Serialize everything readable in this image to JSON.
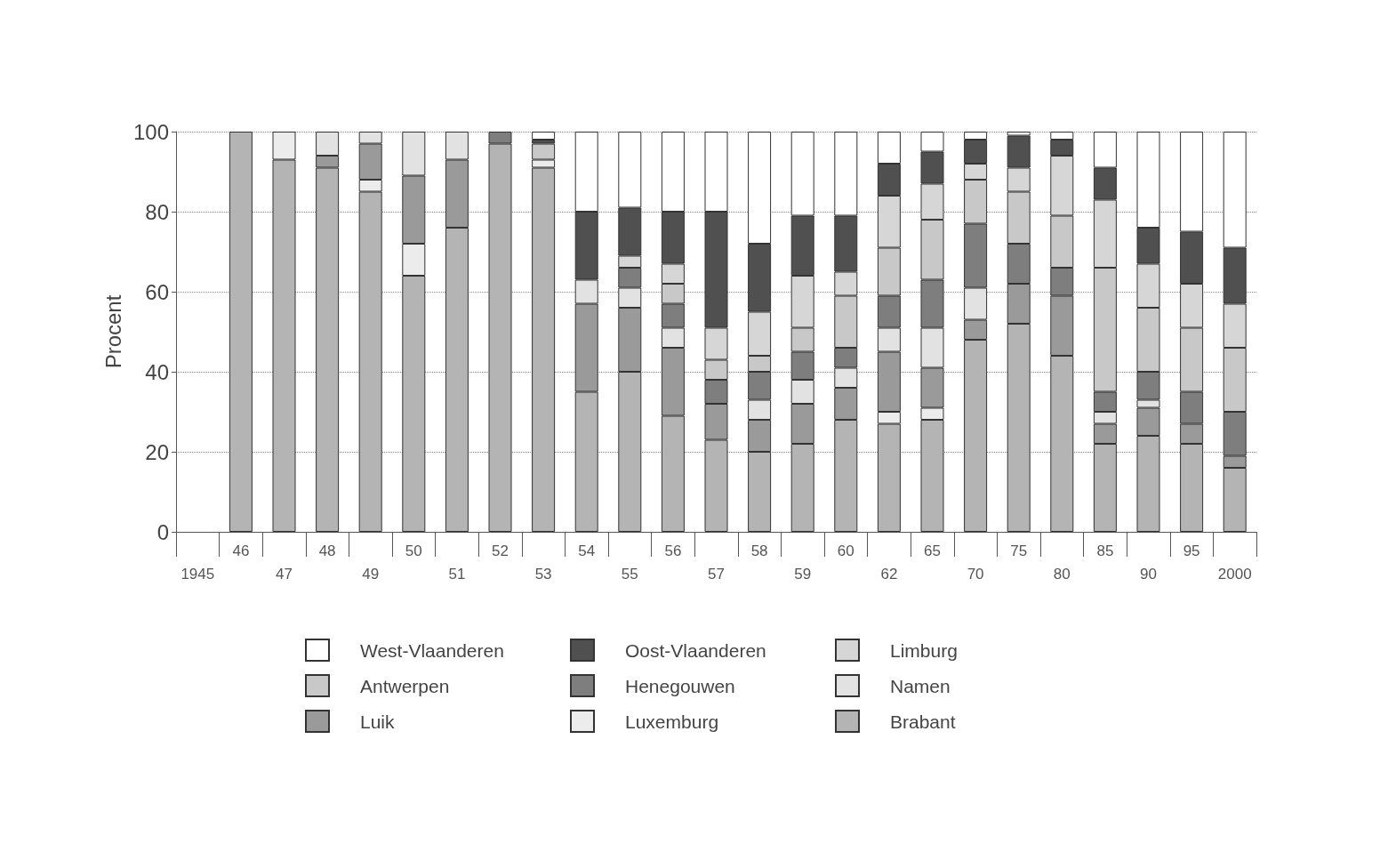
{
  "chart_data": {
    "type": "bar",
    "stacked": true,
    "ylabel": "Procent",
    "ylim": [
      0,
      100
    ],
    "yticks": [
      0,
      20,
      40,
      60,
      80,
      100
    ],
    "grid": "y",
    "legend": "bottom",
    "categories": [
      "1945",
      "46",
      "47",
      "48",
      "49",
      "50",
      "51",
      "52",
      "53",
      "54",
      "55",
      "56",
      "57",
      "58",
      "59",
      "60",
      "62",
      "65",
      "70",
      "75",
      "80",
      "85",
      "90",
      "95",
      "2000"
    ],
    "series": [
      {
        "name": "Brabant",
        "color": "#b4b4b4",
        "values": [
          null,
          100,
          93,
          91,
          85,
          64,
          76,
          97,
          91,
          35,
          40,
          29,
          23,
          20,
          22,
          28,
          27,
          28,
          48,
          52,
          44,
          22,
          24,
          22,
          16
        ]
      },
      {
        "name": "Luxemburg",
        "color": "#ececec",
        "values": [
          null,
          null,
          7,
          null,
          3,
          8,
          null,
          null,
          2,
          null,
          null,
          null,
          null,
          null,
          null,
          null,
          3,
          3,
          null,
          null,
          null,
          null,
          null,
          null,
          null
        ]
      },
      {
        "name": "Luik",
        "color": "#9a9a9a",
        "values": [
          null,
          null,
          null,
          3,
          9,
          17,
          17,
          null,
          null,
          22,
          16,
          17,
          9,
          8,
          10,
          8,
          15,
          10,
          5,
          10,
          15,
          5,
          7,
          5,
          3
        ]
      },
      {
        "name": "Namen",
        "color": "#e2e2e2",
        "values": [
          null,
          null,
          null,
          6,
          3,
          11,
          7,
          null,
          null,
          6,
          5,
          5,
          null,
          5,
          6,
          5,
          6,
          10,
          8,
          null,
          null,
          3,
          2,
          null,
          null
        ]
      },
      {
        "name": "Henegouwen",
        "color": "#7e7e7e",
        "values": [
          null,
          null,
          null,
          null,
          null,
          null,
          null,
          3,
          null,
          null,
          5,
          6,
          6,
          7,
          7,
          5,
          8,
          12,
          16,
          10,
          7,
          5,
          7,
          8,
          11
        ]
      },
      {
        "name": "Antwerpen",
        "color": "#c8c8c8",
        "values": [
          null,
          null,
          null,
          null,
          null,
          null,
          null,
          null,
          4,
          null,
          null,
          5,
          5,
          4,
          6,
          13,
          12,
          15,
          11,
          13,
          13,
          31,
          16,
          16,
          16
        ]
      },
      {
        "name": "Limburg",
        "color": "#d6d6d6",
        "values": [
          null,
          null,
          null,
          null,
          null,
          null,
          null,
          null,
          null,
          null,
          3,
          5,
          8,
          11,
          13,
          6,
          13,
          9,
          4,
          6,
          15,
          17,
          11,
          11,
          11
        ]
      },
      {
        "name": "Oost-Vlaanderen",
        "color": "#505050",
        "values": [
          null,
          null,
          null,
          null,
          null,
          null,
          null,
          null,
          1,
          17,
          12,
          13,
          29,
          17,
          15,
          14,
          8,
          8,
          6,
          8,
          4,
          8,
          9,
          13,
          14
        ]
      },
      {
        "name": "West-Vlaanderen",
        "color": "#ffffff",
        "values": [
          null,
          null,
          null,
          null,
          null,
          null,
          null,
          null,
          2,
          20,
          19,
          20,
          20,
          28,
          21,
          21,
          8,
          5,
          2,
          1,
          2,
          9,
          24,
          25,
          29
        ]
      }
    ]
  }
}
